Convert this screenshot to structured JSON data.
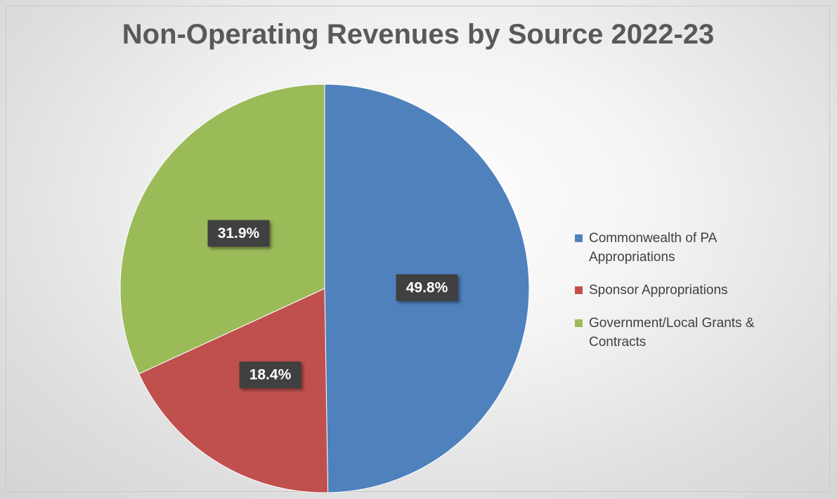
{
  "chart_data": {
    "type": "pie",
    "title": "Non-Operating Revenues by Source 2022-23",
    "categories": [
      "Commonwealth of PA Appropriations",
      "Sponsor Appropriations",
      "Government/Local Grants & Contracts"
    ],
    "values": [
      49.8,
      18.4,
      31.9
    ],
    "value_labels": [
      "49.8%",
      "18.4%",
      "31.9%"
    ],
    "colors": [
      "#4f81bd",
      "#c0504d",
      "#9bbb59"
    ],
    "legend": "right"
  }
}
